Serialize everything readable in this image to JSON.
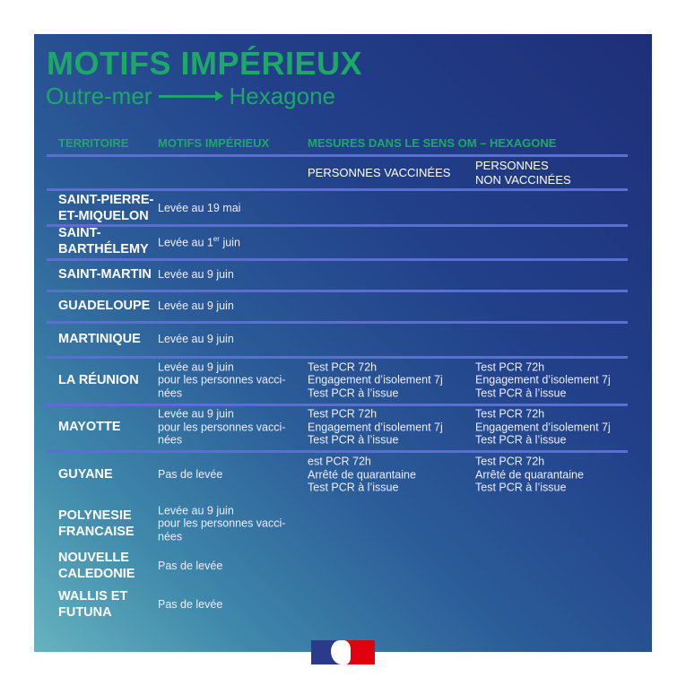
{
  "title": "MOTIFS IMPÉRIEUX",
  "subtitle": {
    "from": "Outre-mer",
    "to": "Hexagone"
  },
  "headers": {
    "territoire": "TERRITOIRE",
    "motifs": "MOTIFS IMPÉRIEUX",
    "mesures": "MESURES DANS LE SENS OM – HEXAGONE",
    "vaccinees": "PERSONNES VACCINÉES",
    "non_vaccinees": "PERSONNES\nNON VACCINÉES"
  },
  "rows": [
    {
      "territoire": "SAINT-PIERRE-\nET-MIQUELON",
      "motif": "Levée au 19 mai",
      "vaccinees": "",
      "non_vaccinees": ""
    },
    {
      "territoire": "SAINT-\nBARTHÉLEMY",
      "motif_prefix": "Levée au 1",
      "motif_sup": "er",
      "motif_suffix": " juin",
      "vaccinees": "",
      "non_vaccinees": ""
    },
    {
      "territoire": "SAINT-MARTIN",
      "motif": "Levée au 9 juin",
      "vaccinees": "",
      "non_vaccinees": ""
    },
    {
      "territoire": "GUADELOUPE",
      "motif": "Levée au 9 juin",
      "vaccinees": "",
      "non_vaccinees": ""
    },
    {
      "territoire": "MARTINIQUE",
      "motif": "Levée au 9 juin",
      "vaccinees": "",
      "non_vaccinees": ""
    },
    {
      "territoire": "LA RÉUNION",
      "motif": "Levée au 9 juin\npour les personnes vacci-\nnées",
      "vaccinees": "Test PCR 72h\nEngagement d’isolement 7j\nTest PCR à l’issue",
      "non_vaccinees": "Test PCR 72h\nEngagement d’isolement 7j\nTest PCR à l’issue"
    },
    {
      "territoire": "MAYOTTE",
      "motif": "Levée au 9 juin\npour les personnes vacci-\nnées",
      "vaccinees": "Test PCR 72h\nEngagement d’isolement 7j\nTest PCR à l’issue",
      "non_vaccinees": "Test PCR 72h\nEngagement d’isolement 7j\nTest PCR à l’issue"
    },
    {
      "territoire": "GUYANE",
      "motif": "Pas de levée",
      "vaccinees": "est PCR 72h\nArrêté de quarantaine\nTest PCR à l’issue",
      "non_vaccinees": "Test PCR 72h\nArrêté de quarantaine\nTest PCR à l’issue"
    },
    {
      "territoire": "POLYNESIE\nFRANCAISE",
      "motif": "Levée au 9 juin\npour les personnes vacci-\nnées",
      "vaccinees": "",
      "non_vaccinees": ""
    },
    {
      "territoire": "NOUVELLE\nCALEDONIE",
      "motif": "Pas de levée",
      "vaccinees": "",
      "non_vaccinees": ""
    },
    {
      "territoire": "WALLIS ET\nFUTUNA",
      "motif": "Pas de levée",
      "vaccinees": "",
      "non_vaccinees": ""
    }
  ],
  "colors": {
    "accent": "#1ea868",
    "divider": "#5b6fd0",
    "navy": "#1e2f78",
    "teal": "#66b3bf"
  },
  "logo": "Marianne - République Française"
}
